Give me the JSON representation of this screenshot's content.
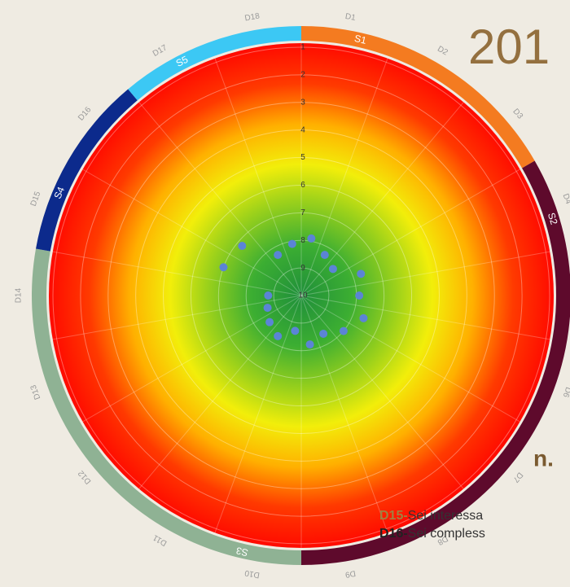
{
  "chart_data": {
    "type": "polar-scatter",
    "title": "201",
    "annotation": "n.",
    "notes": [
      {
        "code": "D15-",
        "text": "Sei interessa"
      },
      {
        "code": "D16-",
        "text": "Sei compless"
      }
    ],
    "categories": [
      "D1",
      "D2",
      "D3",
      "D4",
      "D5",
      "D6",
      "D7",
      "D8",
      "D9",
      "D10",
      "D11",
      "D12",
      "D13",
      "D14",
      "D15",
      "D16",
      "D17",
      "D18"
    ],
    "values": [
      7.9,
      8.3,
      8.5,
      7.7,
      7.9,
      7.6,
      8.0,
      8.4,
      8.2,
      8.7,
      8.3,
      8.5,
      8.7,
      8.8,
      7.0,
      7.2,
      8.3,
      8.1
    ],
    "color": "#5b84d6",
    "sections": [
      {
        "name": "S1",
        "color": "#f47b20",
        "categories": [
          "D1",
          "D2",
          "D3"
        ]
      },
      {
        "name": "S2",
        "color": "#5e0a2c",
        "categories": [
          "D4",
          "D5",
          "D6",
          "D7",
          "D8",
          "D9"
        ]
      },
      {
        "name": "S3",
        "color": "#8fb294",
        "categories": [
          "D10",
          "D11",
          "D12",
          "D13",
          "D14"
        ]
      },
      {
        "name": "S4",
        "color": "#0c2a8c",
        "categories": [
          "D15",
          "D16"
        ]
      },
      {
        "name": "S5",
        "color": "#3cc8f4",
        "categories": [
          "D17",
          "D18"
        ]
      }
    ],
    "rlim": [
      10,
      1
    ],
    "rticks": [
      1,
      2,
      3,
      4,
      5,
      6,
      7,
      8,
      9,
      10
    ],
    "grid": true
  }
}
